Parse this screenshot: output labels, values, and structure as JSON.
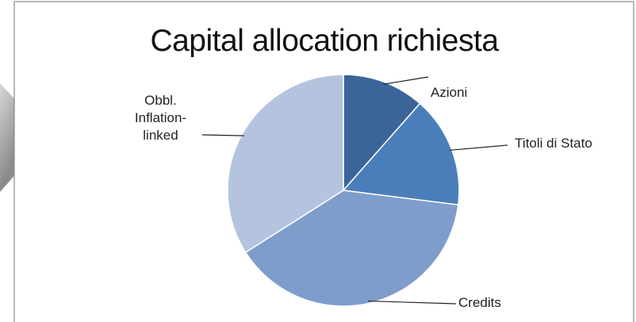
{
  "chart_data": {
    "type": "pie",
    "title": "Capital allocation richiesta",
    "categories": [
      "Azioni",
      "Titoli di Stato",
      "Credits",
      "Obbl. Inflation-linked"
    ],
    "values": [
      11.5,
      15.5,
      39,
      34
    ],
    "colors": [
      "#3b6499",
      "#4a7ebb",
      "#7e9dcb",
      "#b4c4df"
    ]
  }
}
